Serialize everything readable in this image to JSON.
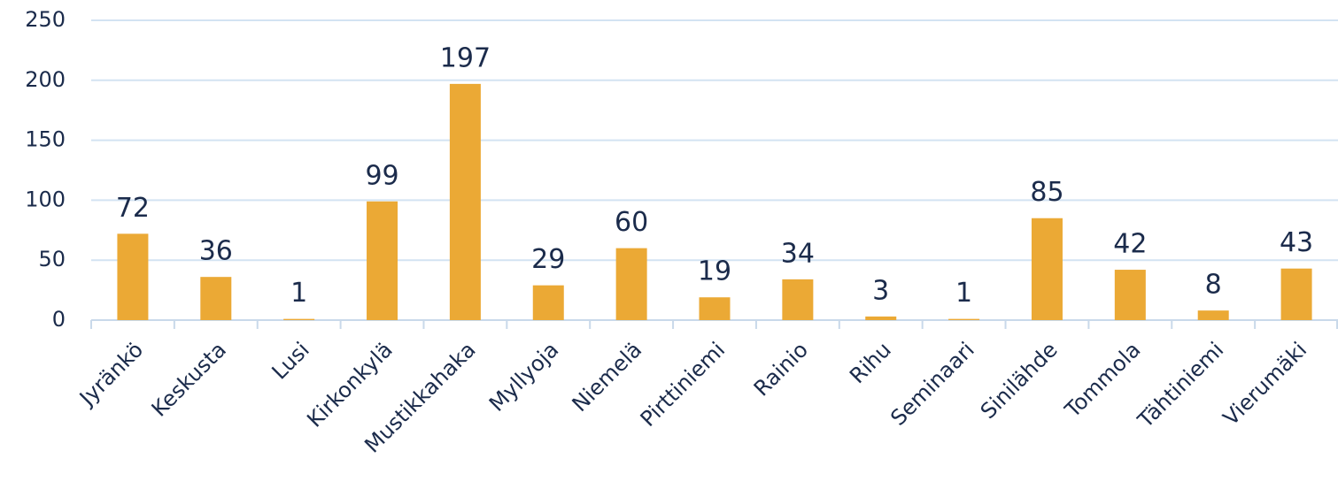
{
  "chart_data": {
    "type": "bar",
    "categories": [
      "Jyränkö",
      "Keskusta",
      "Lusi",
      "Kirkonkylä",
      "Mustikkahaka",
      "Myllyoja",
      "Niemelä",
      "Pirttiniemi",
      "Rainio",
      "Rihu",
      "Seminaari",
      "Sinilähde",
      "Tommola",
      "Tähtiniemi",
      "Vierumäki"
    ],
    "values": [
      72,
      36,
      1,
      99,
      197,
      29,
      60,
      19,
      34,
      3,
      1,
      85,
      42,
      8,
      43
    ],
    "color": "#eba935",
    "ylim": [
      0,
      250
    ],
    "yticks": [
      0,
      50,
      100,
      150,
      200,
      250
    ],
    "grid": true
  }
}
